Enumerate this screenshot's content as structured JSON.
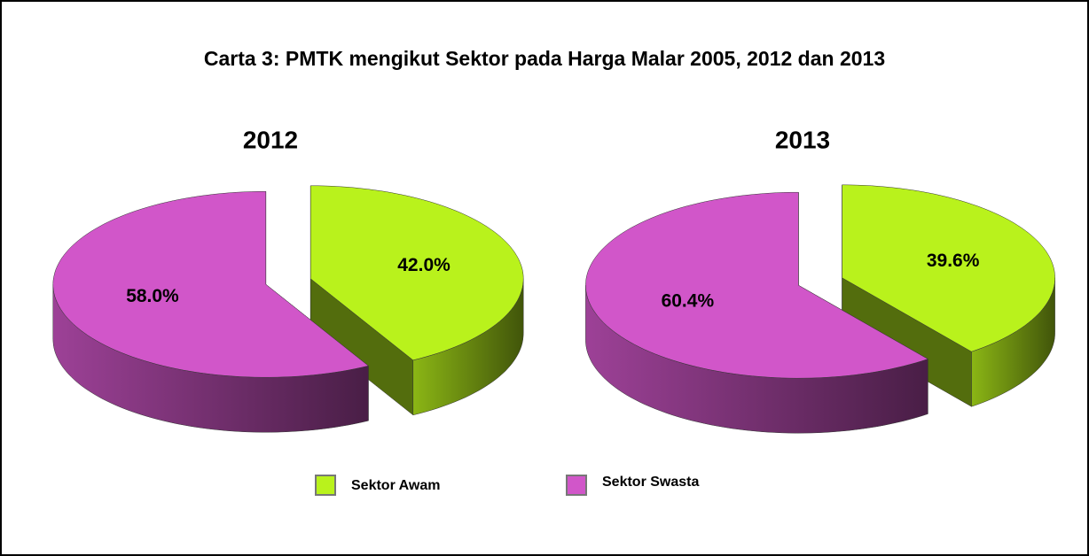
{
  "title": "Carta 3: PMTK mengikut Sektor pada Harga Malar 2005, 2012 dan 2013",
  "chart_data": [
    {
      "type": "pie",
      "title": "2012",
      "categories": [
        "Sektor Awam",
        "Sektor Swasta"
      ],
      "values": [
        42.0,
        58.0
      ],
      "value_labels": [
        "42.0%",
        "58.0%"
      ],
      "colors": [
        "#b9f21c",
        "#d156c9"
      ]
    },
    {
      "type": "pie",
      "title": "2013",
      "categories": [
        "Sektor Awam",
        "Sektor Swasta"
      ],
      "values": [
        39.6,
        60.4
      ],
      "value_labels": [
        "39.6%",
        "60.4%"
      ],
      "colors": [
        "#b9f21c",
        "#d156c9"
      ]
    }
  ]
}
